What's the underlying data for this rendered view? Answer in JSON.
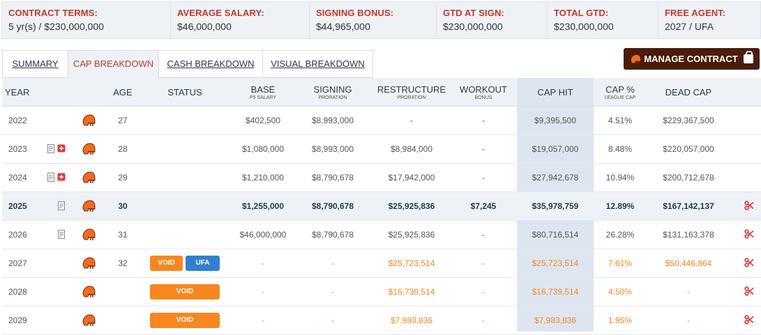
{
  "summary": [
    {
      "label": "CONTRACT TERMS:",
      "value": "5 yr(s) / $230,000,000"
    },
    {
      "label": "AVERAGE SALARY:",
      "value": "$46,000,000"
    },
    {
      "label": "SIGNING BONUS:",
      "value": "$44,965,000"
    },
    {
      "label": "GTD AT SIGN:",
      "value": "$230,000,000"
    },
    {
      "label": "TOTAL GTD:",
      "value": "$230,000,000"
    },
    {
      "label": "FREE AGENT:",
      "value": "2027 / UFA"
    }
  ],
  "tabs": [
    "SUMMARY",
    "CAP BREAKDOWN",
    "CASH BREAKDOWN",
    "VISUAL BREAKDOWN"
  ],
  "active_tab": "CAP BREAKDOWN",
  "manage_label": "MANAGE CONTRACT",
  "headers": {
    "year": "YEAR",
    "age": "AGE",
    "status": "STATUS",
    "base": "BASE",
    "base_sub": "P5 SALARY",
    "signing": "SIGNING",
    "signing_sub": "PRORATION",
    "restructure": "RESTRUCTURE",
    "restructure_sub": "PRORATION",
    "workout": "WORKOUT",
    "workout_sub": "BONUS",
    "cap_hit": "CAP HIT",
    "cap_pct": "CAP %",
    "cap_pct_sub": "LEAGUE CAP",
    "dead_cap": "DEAD CAP"
  },
  "rows": [
    {
      "year": "2022",
      "age": "27",
      "base": "$402,500",
      "signing": "$8,993,000",
      "restructure": "-",
      "workout": "-",
      "cap_hit": "$9,395,500",
      "cap_pct": "4.51%",
      "dead_cap": "$229,367,500"
    },
    {
      "year": "2023",
      "age": "28",
      "base": "$1,080,000",
      "signing": "$8,993,000",
      "restructure": "$8,984,000",
      "workout": "-",
      "cap_hit": "$19,057,000",
      "cap_pct": "8.48%",
      "dead_cap": "$220,057,000"
    },
    {
      "year": "2024",
      "age": "29",
      "base": "$1,210,000",
      "signing": "$8,790,678",
      "restructure": "$17,942,000",
      "workout": "-",
      "cap_hit": "$27,942,678",
      "cap_pct": "10.94%",
      "dead_cap": "$200,712,678"
    },
    {
      "year": "2025",
      "age": "30",
      "base": "$1,255,000",
      "signing": "$8,790,678",
      "restructure": "$25,925,836",
      "workout": "$7,245",
      "cap_hit": "$35,978,759",
      "cap_pct": "12.89%",
      "dead_cap": "$167,142,137"
    },
    {
      "year": "2026",
      "age": "31",
      "base": "$46,000,000",
      "signing": "$8,790,678",
      "restructure": "$25,925,836",
      "workout": "-",
      "cap_hit": "$80,716,514",
      "cap_pct": "26.28%",
      "dead_cap": "$131,163,378"
    },
    {
      "year": "2027",
      "age": "32",
      "status": [
        "VOID",
        "UFA"
      ],
      "base": "-",
      "signing": "-",
      "restructure": "$25,723,514",
      "workout": "-",
      "cap_hit": "$25,723,514",
      "cap_pct": "7.61%",
      "dead_cap": "$50,446,864"
    },
    {
      "year": "2028",
      "age": "",
      "status": [
        "VOID"
      ],
      "base": "-",
      "signing": "-",
      "restructure": "$16,739,514",
      "workout": "-",
      "cap_hit": "$16,739,514",
      "cap_pct": "4.50%",
      "dead_cap": "-"
    },
    {
      "year": "2029",
      "age": "",
      "status": [
        "VOID"
      ],
      "base": "-",
      "signing": "-",
      "restructure": "$7,983,836",
      "workout": "-",
      "cap_hit": "$7,983,836",
      "cap_pct": "1.95%",
      "dead_cap": "-"
    }
  ],
  "colors": {
    "accent_red": "#c0392b",
    "void_orange": "#f7871e",
    "ufa_blue": "#2f80d1",
    "manage_brown": "#4a1c0c"
  },
  "icons": {
    "team": "helmet-icon",
    "doc": "document-icon",
    "restructure": "plus-square-icon",
    "release": "scissors-icon",
    "lock": "lock-icon"
  }
}
